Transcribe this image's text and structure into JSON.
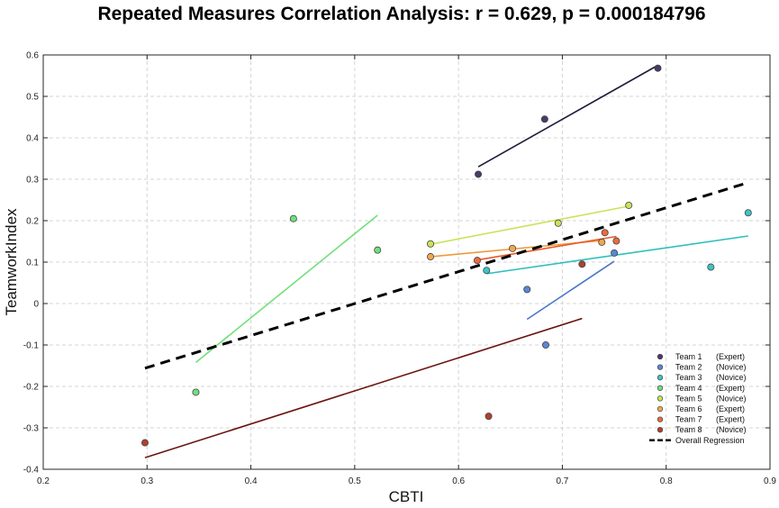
{
  "chart_data": {
    "type": "scatter",
    "title": "Repeated Measures Correlation Analysis: r = 0.629, p = 0.000184796",
    "xlabel": "CBTI",
    "ylabel": "TeamworkIndex",
    "xlim": [
      0.2,
      0.9
    ],
    "ylim": [
      -0.4,
      0.6
    ],
    "xticks": [
      0.2,
      0.3,
      0.4,
      0.5,
      0.6,
      0.7,
      0.8,
      0.9
    ],
    "yticks": [
      -0.4,
      -0.3,
      -0.2,
      -0.1,
      0,
      0.1,
      0.2,
      0.3,
      0.4,
      0.5,
      0.6
    ],
    "xtick_labels": [
      "0.2",
      "0.3",
      "0.4",
      "0.5",
      "0.6",
      "0.7",
      "0.8",
      "0.9"
    ],
    "ytick_labels": [
      "-0.4",
      "-0.3",
      "-0.2",
      "-0.1",
      "0",
      "0.1",
      "0.2",
      "0.3",
      "0.4",
      "0.5",
      "0.6"
    ],
    "grid": true,
    "legend_position": "bottom-right",
    "series": [
      {
        "name": "Team 1",
        "group": "(Expert)",
        "color": "#4a3a6a",
        "line_color": "#1e1a3a",
        "points": [
          [
            0.619,
            0.312
          ],
          [
            0.683,
            0.445
          ],
          [
            0.792,
            0.568
          ]
        ],
        "fit": [
          [
            0.619,
            0.33
          ],
          [
            0.792,
            0.575
          ]
        ]
      },
      {
        "name": "Team 2",
        "group": "(Novice)",
        "color": "#5b86d6",
        "line_color": "#4a78c8",
        "points": [
          [
            0.666,
            0.034
          ],
          [
            0.684,
            -0.1
          ],
          [
            0.75,
            0.122
          ]
        ],
        "fit": [
          [
            0.666,
            -0.038
          ],
          [
            0.75,
            0.102
          ]
        ]
      },
      {
        "name": "Team 3",
        "group": "(Novice)",
        "color": "#3ec4c6",
        "line_color": "#2fbfbf",
        "points": [
          [
            0.627,
            0.08
          ],
          [
            0.843,
            0.088
          ],
          [
            0.879,
            0.219
          ]
        ],
        "fit": [
          [
            0.627,
            0.072
          ],
          [
            0.879,
            0.163
          ]
        ]
      },
      {
        "name": "Team 4",
        "group": "(Expert)",
        "color": "#6ee07a",
        "line_color": "#6ee07a",
        "points": [
          [
            0.347,
            -0.214
          ],
          [
            0.441,
            0.205
          ],
          [
            0.522,
            0.129
          ]
        ],
        "fit": [
          [
            0.347,
            -0.142
          ],
          [
            0.522,
            0.213
          ]
        ]
      },
      {
        "name": "Team 5",
        "group": "(Novice)",
        "color": "#c9e35a",
        "line_color": "#c9e35a",
        "points": [
          [
            0.573,
            0.144
          ],
          [
            0.696,
            0.194
          ],
          [
            0.764,
            0.237
          ]
        ],
        "fit": [
          [
            0.573,
            0.143
          ],
          [
            0.764,
            0.235
          ]
        ]
      },
      {
        "name": "Team 6",
        "group": "(Expert)",
        "color": "#f0a850",
        "line_color": "#ee9a3a",
        "points": [
          [
            0.573,
            0.113
          ],
          [
            0.652,
            0.133
          ],
          [
            0.738,
            0.148
          ]
        ],
        "fit": [
          [
            0.573,
            0.113
          ],
          [
            0.738,
            0.152
          ]
        ]
      },
      {
        "name": "Team 7",
        "group": "(Expert)",
        "color": "#ee6a3a",
        "line_color": "#e85a2a",
        "points": [
          [
            0.618,
            0.104
          ],
          [
            0.741,
            0.171
          ],
          [
            0.752,
            0.151
          ]
        ],
        "fit": [
          [
            0.618,
            0.105
          ],
          [
            0.752,
            0.162
          ]
        ]
      },
      {
        "name": "Team 8",
        "group": "(Novice)",
        "color": "#b04030",
        "line_color": "#6a1510",
        "points": [
          [
            0.298,
            -0.336
          ],
          [
            0.629,
            -0.272
          ],
          [
            0.719,
            0.095
          ]
        ],
        "fit": [
          [
            0.298,
            -0.372
          ],
          [
            0.719,
            -0.036
          ]
        ]
      }
    ],
    "overall_regression": {
      "name": "Overall Regression",
      "fit": [
        [
          0.298,
          -0.156
        ],
        [
          0.879,
          0.292
        ]
      ]
    }
  }
}
